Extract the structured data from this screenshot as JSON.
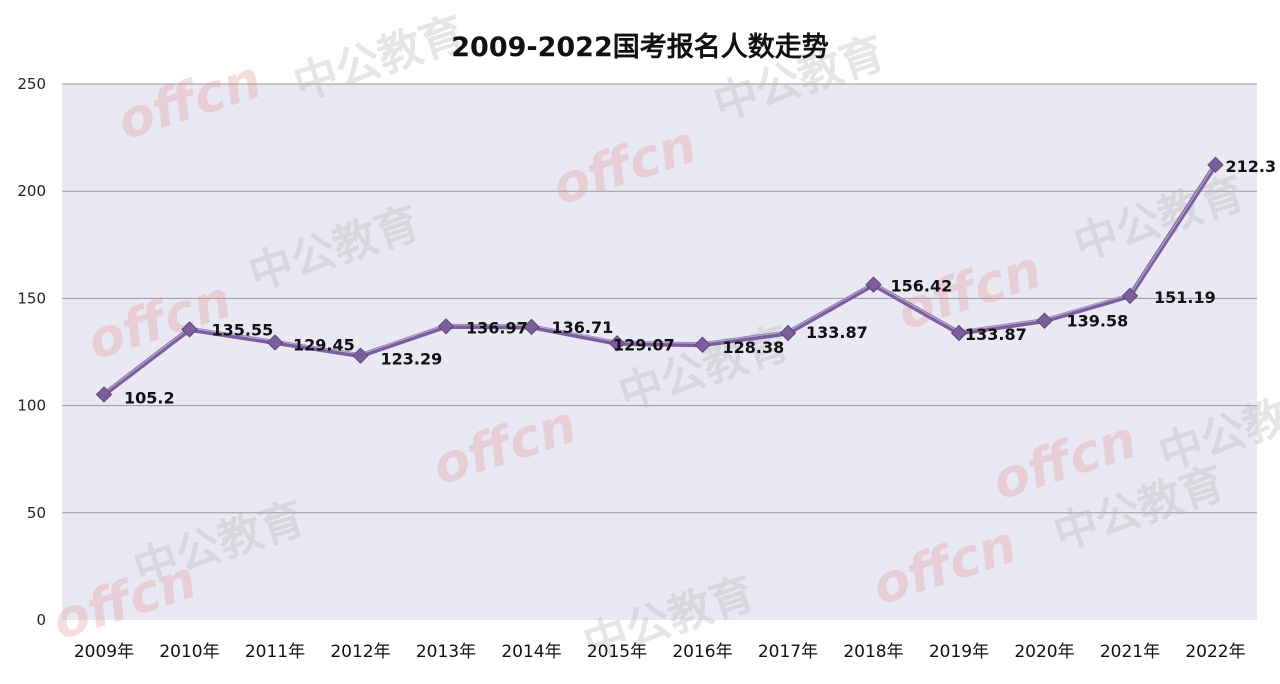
{
  "colors": {
    "plot_background": "#e9e9f3",
    "series_line": "#7b5f9c",
    "marker": "#7b5f9c",
    "gridline": "#9a9a9a",
    "watermark_red": "#e28a8a",
    "watermark_gray": "#b8b8b8"
  },
  "watermark": {
    "latin": "offcn",
    "cjk": "中公教育"
  },
  "chart_data": {
    "type": "line",
    "title": "2009-2022国考报名人数走势",
    "xlabel": "",
    "ylabel": "",
    "categories": [
      "2009年",
      "2010年",
      "2011年",
      "2012年",
      "2013年",
      "2014年",
      "2015年",
      "2016年",
      "2017年",
      "2018年",
      "2019年",
      "2020年",
      "2021年",
      "2022年"
    ],
    "series": [
      {
        "values": [
          105.2,
          135.55,
          129.45,
          123.29,
          136.97,
          136.71,
          129.07,
          128.38,
          133.87,
          156.42,
          133.87,
          139.58,
          151.19,
          212.3
        ],
        "labels": [
          "105.2",
          "135.55",
          "129.45",
          "123.29",
          "136.97",
          "136.71",
          "129.07",
          "128.38",
          "133.87",
          "156.42",
          "133.87",
          "139.58",
          "151.19",
          "212.3"
        ]
      }
    ],
    "ylim": [
      0,
      250
    ],
    "yticks": [
      "0",
      "50",
      "100",
      "150",
      "200",
      "250"
    ],
    "grid": true,
    "legend": "none",
    "marker": "diamond"
  }
}
